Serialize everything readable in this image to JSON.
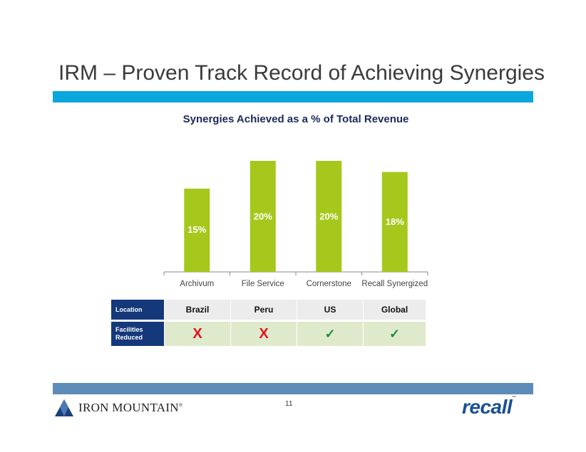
{
  "slide": {
    "title": "IRM – Proven Track Record of Achieving Synergies",
    "page_number": "11",
    "colors": {
      "title_bar": "#0aa6dc",
      "bar": "#a6c81c",
      "table_header": "#14387a",
      "bottom_bar": "#5e8cb8"
    }
  },
  "chart_data": {
    "type": "bar",
    "title": "Synergies Achieved as a % of Total Revenue",
    "categories": [
      "Archivum",
      "File Service",
      "Cornerstone",
      "Recall Synergized"
    ],
    "values": [
      15,
      20,
      20,
      18
    ],
    "data_labels": [
      "15%",
      "20%",
      "20%",
      "18%"
    ],
    "xlabel": "",
    "ylabel": "",
    "ylim": [
      0,
      20
    ],
    "grid": false
  },
  "table": {
    "location_header": "Location",
    "facilities_header": "Facilities Reduced",
    "locations": [
      "Brazil",
      "Peru",
      "US",
      "Global"
    ],
    "facilities_reduced": [
      "X",
      "X",
      "✓",
      "✓"
    ]
  },
  "logos": {
    "iron_mountain": "IRON MOUNTAIN",
    "iron_mountain_mark": "®",
    "recall": "recall",
    "recall_mark": "™"
  }
}
